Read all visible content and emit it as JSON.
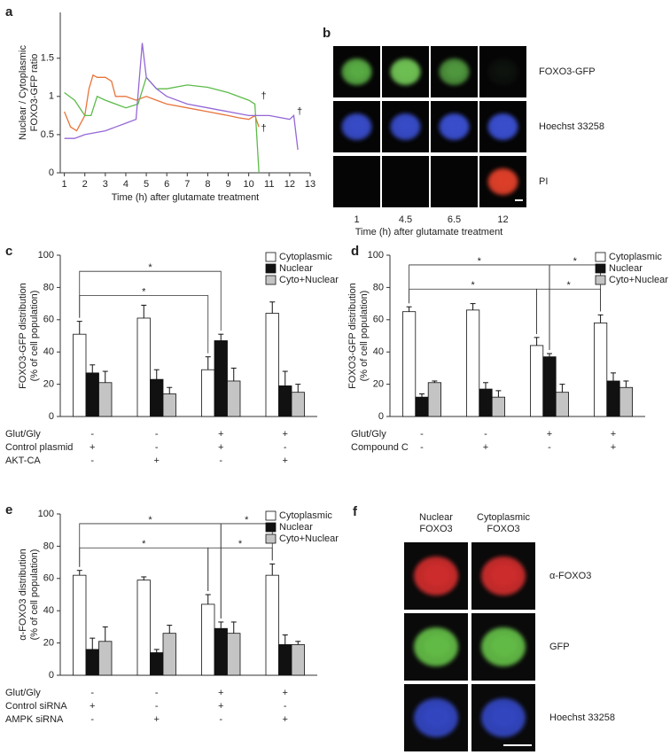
{
  "chart_data": [
    {
      "type": "line",
      "panel": "a",
      "ylabel": [
        "Nuclear / Cytoplasmic",
        "FOXO3-GFP ratio"
      ],
      "xlabel": "Time (h) after glutamate treatment",
      "xlim": [
        0.8,
        13
      ],
      "xticks": [
        1,
        2,
        3,
        4,
        5,
        6,
        7,
        8,
        9,
        10,
        11,
        12,
        13
      ],
      "ylim": [
        0,
        2.1
      ],
      "yticks": [
        0,
        0.5,
        1,
        1.5
      ],
      "series": [
        {
          "color": "#e8743b",
          "x": [
            1,
            1.3,
            1.6,
            2,
            2.2,
            2.4,
            2.6,
            3,
            3.3,
            3.5,
            4,
            4.5,
            5,
            5.5,
            6,
            7,
            8,
            9,
            9.5,
            10,
            10.3,
            10.5
          ],
          "values": [
            0.8,
            0.6,
            0.55,
            0.75,
            1.1,
            1.28,
            1.25,
            1.25,
            1.2,
            1.0,
            1.0,
            0.95,
            1.0,
            0.95,
            0.9,
            0.85,
            0.8,
            0.75,
            0.72,
            0.7,
            0.75,
            0.6
          ]
        },
        {
          "color": "#5dbb4a",
          "x": [
            1,
            1.5,
            2,
            2.3,
            2.6,
            3,
            3.5,
            4,
            4.6,
            5,
            5.5,
            6,
            7,
            8,
            9,
            10,
            10.3,
            10.5
          ],
          "values": [
            1.05,
            0.95,
            0.75,
            0.75,
            1.0,
            0.95,
            0.9,
            0.85,
            0.9,
            1.25,
            1.1,
            1.1,
            1.15,
            1.12,
            1.05,
            0.95,
            0.9,
            0.0
          ]
        },
        {
          "color": "#9467d6",
          "x": [
            1,
            1.5,
            2,
            3,
            3.5,
            4,
            4.5,
            4.8,
            5,
            5.5,
            6,
            7,
            8,
            9,
            10,
            11,
            12,
            12.2,
            12.4
          ],
          "values": [
            0.45,
            0.45,
            0.5,
            0.55,
            0.6,
            0.65,
            0.7,
            1.7,
            1.25,
            1.1,
            1.0,
            0.9,
            0.85,
            0.8,
            0.75,
            0.75,
            0.7,
            0.75,
            0.3
          ]
        }
      ],
      "annotations": [
        {
          "text": "†",
          "x": 10.6,
          "y": 0.58
        },
        {
          "text": "†",
          "x": 10.6,
          "y": 1.0
        },
        {
          "text": "†",
          "x": 12.35,
          "y": 0.8
        }
      ]
    },
    {
      "type": "bar",
      "panel": "c",
      "ylabel": [
        "FOXO3-GFP distribution",
        "(% of cell population)"
      ],
      "categories": [
        null,
        null,
        null,
        null
      ],
      "ylim": [
        0,
        100
      ],
      "yticks": [
        0,
        20,
        40,
        60,
        80,
        100
      ],
      "legend": "upper right",
      "series": [
        {
          "name": "Cytoplasmic",
          "color": "#ffffff",
          "values": [
            51,
            61,
            29,
            64
          ],
          "errors": [
            8,
            8,
            8,
            7
          ]
        },
        {
          "name": "Nuclear",
          "color": "#111111",
          "values": [
            27,
            23,
            47,
            19
          ],
          "errors": [
            5,
            6,
            4,
            9
          ]
        },
        {
          "name": "Cyto+Nuclear",
          "color": "#c4c4c4",
          "values": [
            21,
            14,
            22,
            15
          ],
          "errors": [
            7,
            4,
            8,
            5
          ]
        }
      ],
      "conditions": [
        {
          "name": "Glut/Gly",
          "values": [
            "-",
            "-",
            "+",
            "+"
          ]
        },
        {
          "name": "Control plasmid",
          "values": [
            "+",
            "-",
            "+",
            "-"
          ]
        },
        {
          "name": "AKT-CA",
          "values": [
            "-",
            "+",
            "-",
            "+"
          ]
        }
      ],
      "significance": [
        {
          "from": [
            0,
            0
          ],
          "to": [
            2,
            1
          ],
          "label": "*"
        },
        {
          "from": [
            0,
            0
          ],
          "to": [
            2,
            0
          ],
          "label": "*"
        }
      ]
    },
    {
      "type": "bar",
      "panel": "d",
      "ylabel": [
        "FOXO3-GFP distribution",
        "(% of cell population)"
      ],
      "categories": [
        null,
        null,
        null,
        null
      ],
      "ylim": [
        0,
        100
      ],
      "yticks": [
        0,
        20,
        40,
        60,
        80,
        100
      ],
      "legend": "upper right",
      "series": [
        {
          "name": "Cytoplasmic",
          "color": "#ffffff",
          "values": [
            65,
            66,
            44,
            58
          ],
          "errors": [
            3,
            4,
            5,
            5
          ]
        },
        {
          "name": "Nuclear",
          "color": "#111111",
          "values": [
            12,
            17,
            37,
            22
          ],
          "errors": [
            2,
            4,
            2,
            5
          ]
        },
        {
          "name": "Cyto+Nuclear",
          "color": "#c4c4c4",
          "values": [
            21,
            12,
            15,
            18
          ],
          "errors": [
            1,
            4,
            5,
            4
          ]
        }
      ],
      "conditions": [
        {
          "name": "Glut/Gly",
          "values": [
            "-",
            "-",
            "+",
            "+"
          ]
        },
        {
          "name": "Compound C",
          "values": [
            "-",
            "+",
            "-",
            "+"
          ]
        }
      ],
      "significance": [
        {
          "from": [
            0,
            0
          ],
          "to": [
            2,
            1
          ],
          "label": "*"
        },
        {
          "from": [
            0,
            0
          ],
          "to": [
            2,
            0
          ],
          "label": "*"
        },
        {
          "from": [
            2,
            1
          ],
          "to": [
            3,
            0
          ],
          "label": "*"
        },
        {
          "from": [
            2,
            0
          ],
          "to": [
            3,
            0
          ],
          "label": "*"
        }
      ]
    },
    {
      "type": "bar",
      "panel": "e",
      "ylabel": [
        "α-FOXO3 distribution",
        "(% of cell population)"
      ],
      "categories": [
        null,
        null,
        null,
        null
      ],
      "ylim": [
        0,
        100
      ],
      "yticks": [
        0,
        20,
        40,
        60,
        80,
        100
      ],
      "legend": "upper right",
      "series": [
        {
          "name": "Cytoplasmic",
          "color": "#ffffff",
          "values": [
            62,
            59,
            44,
            62
          ],
          "errors": [
            3,
            2,
            6,
            7
          ]
        },
        {
          "name": "Nuclear",
          "color": "#111111",
          "values": [
            16,
            14,
            29,
            19
          ],
          "errors": [
            7,
            2,
            4,
            6
          ]
        },
        {
          "name": "Cyto+Nuclear",
          "color": "#c4c4c4",
          "values": [
            21,
            26,
            26,
            19
          ],
          "errors": [
            9,
            5,
            7,
            2
          ]
        }
      ],
      "conditions": [
        {
          "name": "Glut/Gly",
          "values": [
            "-",
            "-",
            "+",
            "+"
          ]
        },
        {
          "name": "Control siRNA",
          "values": [
            "+",
            "-",
            "+",
            "-"
          ]
        },
        {
          "name": "AMPK siRNA",
          "values": [
            "-",
            "+",
            "-",
            "+"
          ]
        }
      ],
      "significance": [
        {
          "from": [
            0,
            0
          ],
          "to": [
            2,
            1
          ],
          "label": "*"
        },
        {
          "from": [
            0,
            0
          ],
          "to": [
            2,
            0
          ],
          "label": "*"
        },
        {
          "from": [
            2,
            1
          ],
          "to": [
            3,
            0
          ],
          "label": "*"
        },
        {
          "from": [
            2,
            0
          ],
          "to": [
            3,
            0
          ],
          "label": "*"
        }
      ]
    }
  ],
  "image_panels": [
    {
      "panel": "b",
      "columns": [
        "1",
        "4.5",
        "6.5",
        "12"
      ],
      "rows": [
        "FOXO3-GFP",
        "Hoechst 33258",
        "PI"
      ],
      "xlabel": "Time (h) after glutamate treatment"
    },
    {
      "panel": "f",
      "columns": [
        [
          "Nuclear",
          "FOXO3"
        ],
        [
          "Cytoplasmic",
          "FOXO3"
        ]
      ],
      "rows": [
        "α-FOXO3",
        "GFP",
        "Hoechst 33258"
      ]
    }
  ]
}
